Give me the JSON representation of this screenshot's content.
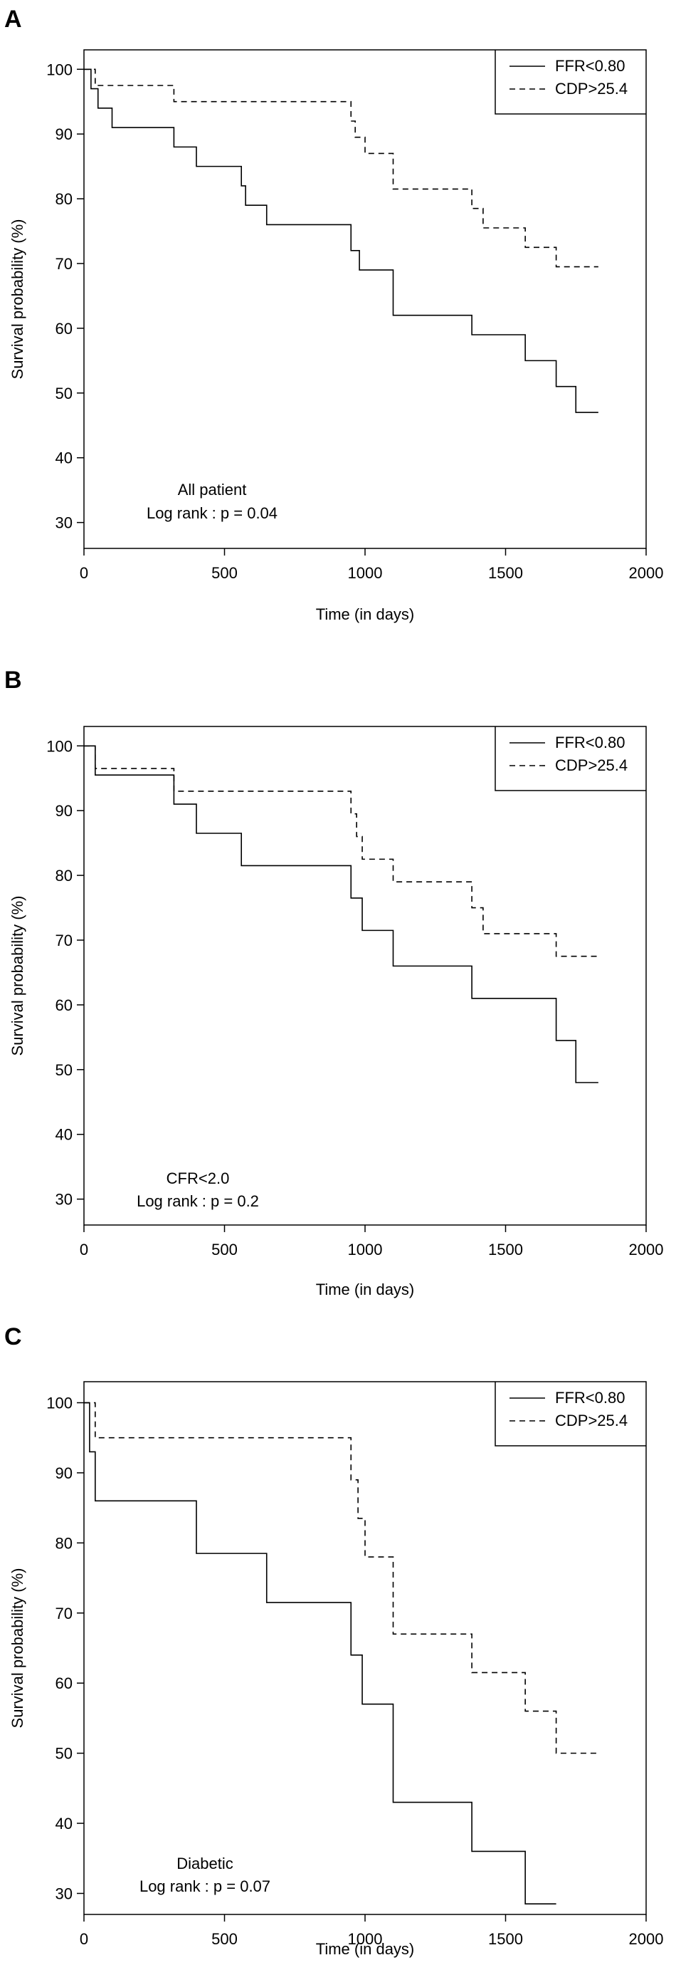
{
  "chart_data": [
    {
      "type": "line",
      "panel": "A",
      "title": "",
      "xlabel": "Time (in days)",
      "ylabel": "Survival probability (%)",
      "xlim": [
        0,
        2000
      ],
      "ylim": [
        26,
        103
      ],
      "x_ticks": [
        0,
        500,
        1000,
        1500,
        2000
      ],
      "y_ticks": [
        30,
        40,
        50,
        60,
        70,
        80,
        90,
        100
      ],
      "annotation": [
        "All patient",
        "Log rank : p = 0.04"
      ],
      "legend_position": "top-right",
      "series": [
        {
          "name": "FFR<0.80",
          "style": "solid",
          "x": [
            0,
            25,
            50,
            100,
            320,
            400,
            560,
            575,
            650,
            950,
            980,
            1100,
            1380,
            1570,
            1680,
            1750,
            1830
          ],
          "y": [
            100,
            97,
            94,
            91,
            88,
            85,
            82,
            79,
            76,
            72,
            69,
            62,
            59,
            55,
            51,
            47,
            47
          ]
        },
        {
          "name": "CDP>25.4",
          "style": "dashed",
          "x": [
            0,
            40,
            320,
            950,
            965,
            1000,
            1100,
            1380,
            1420,
            1570,
            1680,
            1830
          ],
          "y": [
            100,
            97.5,
            95,
            92,
            89.5,
            87,
            81.5,
            78.5,
            75.5,
            72.5,
            69.5,
            69.5
          ]
        }
      ]
    },
    {
      "type": "line",
      "panel": "B",
      "title": "",
      "xlabel": "Time (in days)",
      "ylabel": "Survival probability (%)",
      "xlim": [
        0,
        2000
      ],
      "ylim": [
        26,
        103
      ],
      "x_ticks": [
        0,
        500,
        1000,
        1500,
        2000
      ],
      "y_ticks": [
        30,
        40,
        50,
        60,
        70,
        80,
        90,
        100
      ],
      "annotation": [
        "CFR<2.0",
        "Log rank : p = 0.2"
      ],
      "legend_position": "top-right",
      "series": [
        {
          "name": "FFR<0.80",
          "style": "solid",
          "x": [
            0,
            40,
            320,
            400,
            560,
            950,
            990,
            1100,
            1380,
            1680,
            1750,
            1830
          ],
          "y": [
            100,
            95.5,
            91,
            86.5,
            81.5,
            76.5,
            71.5,
            66,
            61,
            54.5,
            48,
            48
          ]
        },
        {
          "name": "CDP>25.4",
          "style": "dashed",
          "x": [
            0,
            40,
            320,
            950,
            970,
            990,
            1000,
            1100,
            1380,
            1420,
            1680,
            1830
          ],
          "y": [
            100,
            96.5,
            93,
            89.5,
            86,
            82.5,
            82.5,
            79,
            75,
            71,
            67.5,
            67.5
          ]
        }
      ]
    },
    {
      "type": "line",
      "panel": "C",
      "title": "",
      "xlabel": "Time (in days)",
      "ylabel": "Survival probability (%)",
      "xlim": [
        0,
        2000
      ],
      "ylim": [
        27,
        103
      ],
      "x_ticks": [
        0,
        500,
        1000,
        1500,
        2000
      ],
      "y_ticks": [
        30,
        40,
        50,
        60,
        70,
        80,
        90,
        100
      ],
      "annotation": [
        "Diabetic",
        "Log rank : p = 0.07"
      ],
      "legend_position": "top-right",
      "series": [
        {
          "name": "FFR<0.80",
          "style": "solid",
          "x": [
            0,
            20,
            40,
            400,
            650,
            950,
            990,
            1100,
            1380,
            1570,
            1680
          ],
          "y": [
            100,
            93,
            86,
            78.5,
            71.5,
            64,
            57,
            43,
            36,
            28.5,
            28.5
          ]
        },
        {
          "name": "CDP>25.4",
          "style": "dashed",
          "x": [
            0,
            40,
            950,
            975,
            1000,
            1100,
            1380,
            1570,
            1680,
            1830
          ],
          "y": [
            100,
            95,
            89,
            83.5,
            78,
            67,
            61.5,
            56,
            50,
            50
          ]
        }
      ]
    }
  ]
}
